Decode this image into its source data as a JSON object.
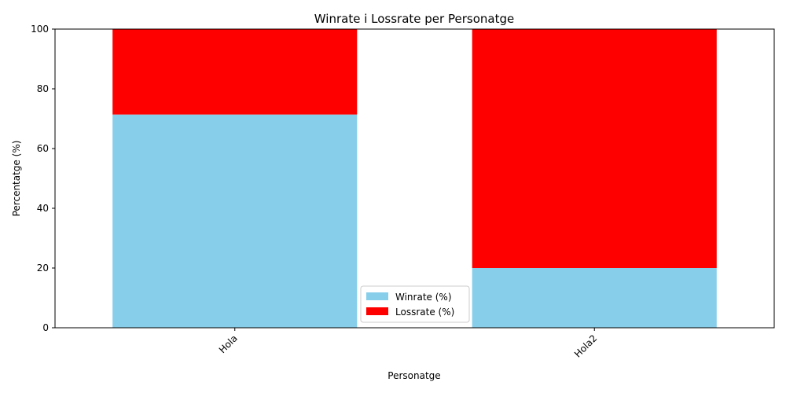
{
  "chart_data": {
    "type": "bar",
    "stacked": true,
    "title": "Winrate i Lossrate per Personatge",
    "xlabel": "Personatge",
    "ylabel": "Percentatge (%)",
    "categories": [
      "Hola",
      "Hola2"
    ],
    "ylim": [
      0,
      100
    ],
    "yticks": [
      0,
      20,
      40,
      60,
      80,
      100
    ],
    "grid": false,
    "legend_position": "bottom-center",
    "series": [
      {
        "name": "Winrate (%)",
        "values": [
          71.4,
          20
        ],
        "color": "#87CEEB"
      },
      {
        "name": "Lossrate (%)",
        "values": [
          28.6,
          80
        ],
        "color": "#FF0000"
      }
    ]
  }
}
